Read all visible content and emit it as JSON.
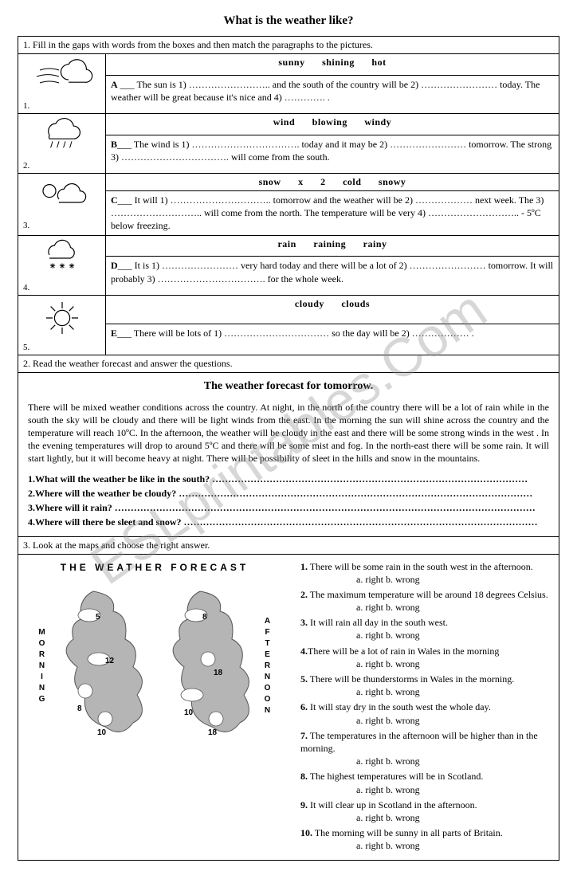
{
  "title": "What is the weather like?",
  "watermark": "ESLprintables.Com",
  "instruction1": "1.   Fill in the gaps with words from the boxes and then match  the paragraphs to the pictures.",
  "rows": [
    {
      "num": "1.",
      "wordbank": "sunny shining hot",
      "letter": "A",
      "text": " ___  The sun is 1) …………………….. and the south of the country will be 2) …………………… today. The weather will be great  because it's nice and 4) …………. ."
    },
    {
      "num": "2.",
      "wordbank": "wind blowing windy",
      "letter": "B",
      "text": "___   The wind is 1) ……………………………. today and it  may be 2) …………………… tomorrow. The strong 3) ……………………………. will come from the south."
    },
    {
      "num": "3.",
      "wordbank": "snow x 2 cold snowy",
      "letter": "C",
      "text": "___  It will 1) ………………………….. tomorrow and the weather will be 2) ……………… next week. The 3) ……………………….. will come from the north. The temperature will be very 4) ……………………….. - 5ºC below freezing."
    },
    {
      "num": "4.",
      "wordbank": "rain raining rainy",
      "letter": "D",
      "text": "___  It is 1) …………………… very hard today and there will be a lot of  2) …………………… tomorrow. It will probably 3) ……………………………. for the whole week."
    },
    {
      "num": "5.",
      "wordbank": "cloudy clouds",
      "letter": "E",
      "text": "___   There will be lots of  1) …………………………… so the day will be 2) ……………… ."
    }
  ],
  "instruction2": "2.   Read the weather forecast and answer the questions.",
  "forecastTitle": "The weather forecast for tomorrow.",
  "forecastBody": "There will be mixed weather conditions across the country. At night,  in the north of the country  there will be a lot of rain while  in the south the sky will be cloudy and there will be light  winds from the east. In the morning  the sun will shine across the country and the temperature will reach 10ºC. In the afternoon, the weather will be cloudy in the east and there will be some strong winds in the west . In the evening temperatures will drop to around 5ºC and there will be some  mist and fog. In the north-east  there will be some rain. It will start lightly, but it will become heavy at night. There will be possibility of sleet in the hills and snow in the mountains.",
  "questions2": [
    "1.What will the weather be like in the south? ………………………………………………………………………………………",
    "2.Where will the weather be cloudy? …………………………………………………………………………………………………",
    "3.Where will it rain? ……………………………………………………………………………………………………………………",
    "4.Where will there be sleet and snow? …………………………………………………………………………………………………"
  ],
  "instruction3": "3.   Look at the maps and choose the right answer.",
  "mapTitle": "THE  WEATHER  FORECAST",
  "mapLabels": {
    "morning": "MORNING",
    "afternoon": "AFTERNOON"
  },
  "mapTemps": {
    "morning": [
      "5",
      "12",
      "8",
      "10"
    ],
    "afternoon": [
      "8",
      "18",
      "10",
      "18"
    ]
  },
  "questions3": [
    "1. There will be some rain in the south west in the afternoon.",
    "2. The maximum temperature will be around 18 degrees Celsius.",
    "3. It will rain all day in the south west.",
    "4.There will be a lot of rain in Wales in the morning",
    "5. There will be thunderstorms in Wales in the morning.",
    "6. It will stay dry in the south west the whole day.",
    "7. The temperatures in the afternoon will be higher than in the morning.",
    "8. The highest temperatures will be in Scotland.",
    "9. It will clear up in Scotland in the afternoon.",
    "10. The morning will be sunny in all parts of Britain."
  ],
  "opts": "a.  right        b.  wrong",
  "colors": {
    "border": "#000000",
    "text": "#000000",
    "mapfill": "#b5b5b5",
    "mapstroke": "#555555"
  }
}
